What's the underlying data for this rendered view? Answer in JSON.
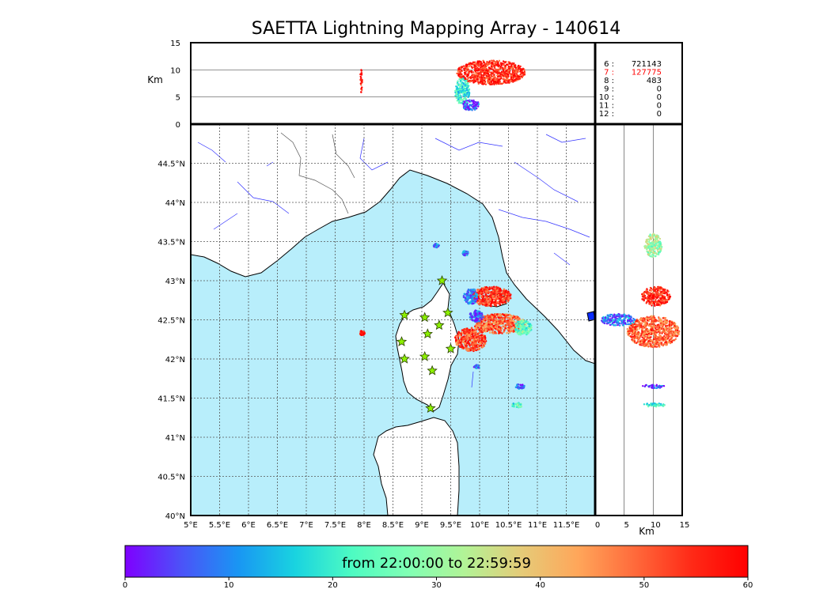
{
  "title": "SAETTA Lightning Mapping Array - 140614",
  "colorbar": {
    "label": "from 22:00:00 to 22:59:59",
    "ticks": [
      "0",
      "10",
      "20",
      "30",
      "40",
      "50",
      "60"
    ],
    "range": [
      0,
      60
    ],
    "colors": [
      "#7f00ff",
      "#4b53f8",
      "#1996f3",
      "#19d3e0",
      "#4dfbc2",
      "#80ffb4",
      "#b2f396",
      "#e5cb78",
      "#ffa65a",
      "#ff6a3b",
      "#ff2a17",
      "#ff0000"
    ]
  },
  "legend_counts": [
    {
      "n": "6",
      "count": "721143",
      "color": "#000000"
    },
    {
      "n": "7",
      "count": "127775",
      "color": "#ff0000"
    },
    {
      "n": "8",
      "count": "483",
      "color": "#000000"
    },
    {
      "n": "9",
      "count": "0",
      "color": "#000000"
    },
    {
      "n": "10",
      "count": "0",
      "color": "#000000"
    },
    {
      "n": "11",
      "count": "0",
      "color": "#000000"
    },
    {
      "n": "12",
      "count": "0",
      "color": "#000000"
    }
  ],
  "chart_data": {
    "type": "scatter",
    "panels": {
      "plan_view": {
        "x_ticks": [
          "5°E",
          "5.5°E",
          "6°E",
          "6.5°E",
          "7°E",
          "7.5°E",
          "8°E",
          "8.5°E",
          "9°E",
          "9.5°E",
          "10°E",
          "10.5°E",
          "11°E",
          "11.5°E"
        ],
        "y_ticks": [
          "40°N",
          "40.5°N",
          "41°N",
          "41.5°N",
          "42°N",
          "42.5°N",
          "43°N",
          "43.5°N",
          "44°N",
          "44.5°N"
        ],
        "xlim": [
          5.0,
          12.0
        ],
        "ylim": [
          40.0,
          45.0
        ],
        "grid": true,
        "station_markers": [
          {
            "lon": 9.35,
            "lat": 43.0
          },
          {
            "lon": 8.7,
            "lat": 42.56
          },
          {
            "lon": 9.05,
            "lat": 42.53
          },
          {
            "lon": 9.45,
            "lat": 42.59
          },
          {
            "lon": 9.1,
            "lat": 42.32
          },
          {
            "lon": 9.3,
            "lat": 42.43
          },
          {
            "lon": 8.65,
            "lat": 42.22
          },
          {
            "lon": 8.7,
            "lat": 42.0
          },
          {
            "lon": 9.05,
            "lat": 42.03
          },
          {
            "lon": 9.5,
            "lat": 42.13
          },
          {
            "lon": 9.18,
            "lat": 41.85
          },
          {
            "lon": 9.15,
            "lat": 41.37
          }
        ],
        "source_clusters": [
          {
            "lon": 10.2,
            "lat": 42.8,
            "w": 0.7,
            "h": 0.25,
            "t": 55
          },
          {
            "lon": 9.85,
            "lat": 42.8,
            "w": 0.25,
            "h": 0.2,
            "t": 8
          },
          {
            "lon": 10.35,
            "lat": 42.45,
            "w": 0.9,
            "h": 0.25,
            "t": 50
          },
          {
            "lon": 9.85,
            "lat": 42.25,
            "w": 0.55,
            "h": 0.3,
            "t": 52
          },
          {
            "lon": 10.75,
            "lat": 42.4,
            "w": 0.3,
            "h": 0.2,
            "t": 25
          },
          {
            "lon": 9.95,
            "lat": 42.55,
            "w": 0.25,
            "h": 0.15,
            "t": 5
          },
          {
            "lon": 7.97,
            "lat": 42.33,
            "w": 0.08,
            "h": 0.07,
            "t": 58
          },
          {
            "lon": 10.7,
            "lat": 41.65,
            "w": 0.15,
            "h": 0.07,
            "t": 6
          },
          {
            "lon": 10.65,
            "lat": 41.41,
            "w": 0.18,
            "h": 0.06,
            "t": 22
          },
          {
            "lon": 9.95,
            "lat": 41.9,
            "w": 0.1,
            "h": 0.05,
            "t": 6
          },
          {
            "lon": 9.25,
            "lat": 43.45,
            "w": 0.1,
            "h": 0.05,
            "t": 8
          },
          {
            "lon": 9.75,
            "lat": 43.35,
            "w": 0.12,
            "h": 0.06,
            "t": 10
          }
        ]
      },
      "lon_alt_view": {
        "ylabel": "Km",
        "y_ticks": [
          "0",
          "5",
          "10",
          "15"
        ],
        "ylim": [
          0,
          15
        ],
        "gridlines_km": [
          5,
          10
        ],
        "source_clusters": [
          {
            "lon": 10.2,
            "alt": 9.5,
            "w": 1.2,
            "h": 4.5,
            "t": 55
          },
          {
            "lon": 9.7,
            "alt": 6.0,
            "w": 0.25,
            "h": 5.0,
            "t": 20
          },
          {
            "lon": 9.85,
            "alt": 3.5,
            "w": 0.3,
            "h": 2.0,
            "t": 6
          },
          {
            "lon": 7.95,
            "alt": 8.0,
            "w": 0.04,
            "h": 4.5,
            "t": 58
          }
        ]
      },
      "alt_lat_view": {
        "xlabel": "Km",
        "x_ticks": [
          "0",
          "5",
          "10",
          "15"
        ],
        "xlim": [
          0,
          15
        ],
        "gridlines_km": [
          5,
          10
        ],
        "source_clusters": [
          {
            "alt": 10.5,
            "lat": 42.8,
            "w": 5.0,
            "h": 0.25,
            "t": 55
          },
          {
            "alt": 10.0,
            "lat": 42.35,
            "w": 9.0,
            "h": 0.4,
            "t": 50
          },
          {
            "alt": 4.0,
            "lat": 42.5,
            "w": 6.0,
            "h": 0.15,
            "t": 8
          },
          {
            "alt": 10.0,
            "lat": 43.45,
            "w": 3.0,
            "h": 0.3,
            "t": 30
          },
          {
            "alt": 10.0,
            "lat": 41.65,
            "w": 4.0,
            "h": 0.05,
            "t": 6
          },
          {
            "alt": 10.0,
            "lat": 41.41,
            "w": 4.0,
            "h": 0.05,
            "t": 22
          }
        ]
      }
    }
  }
}
